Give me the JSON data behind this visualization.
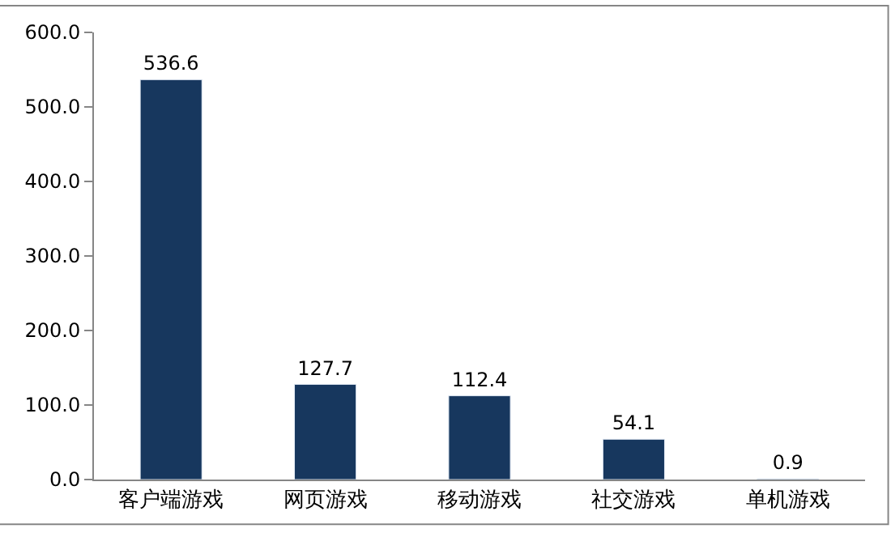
{
  "chart_data": {
    "type": "bar",
    "categories": [
      "客户端游戏",
      "网页游戏",
      "移动游戏",
      "社交游戏",
      "单机游戏"
    ],
    "values": [
      536.6,
      127.7,
      112.4,
      54.1,
      0.9
    ],
    "color": "#17375e",
    "ylim": [
      0,
      600
    ],
    "yticks": [
      {
        "value": 0,
        "label": "0.0"
      },
      {
        "value": 100,
        "label": "100.0"
      },
      {
        "value": 200,
        "label": "200.0"
      },
      {
        "value": 300,
        "label": "300.0"
      },
      {
        "value": 400,
        "label": "400.0"
      },
      {
        "value": 500,
        "label": "500.0"
      },
      {
        "value": 600,
        "label": "600.0"
      }
    ],
    "value_labels": [
      "536.6",
      "127.7",
      "112.4",
      "54.1",
      "0.9"
    ],
    "grid": false,
    "legend": false
  }
}
